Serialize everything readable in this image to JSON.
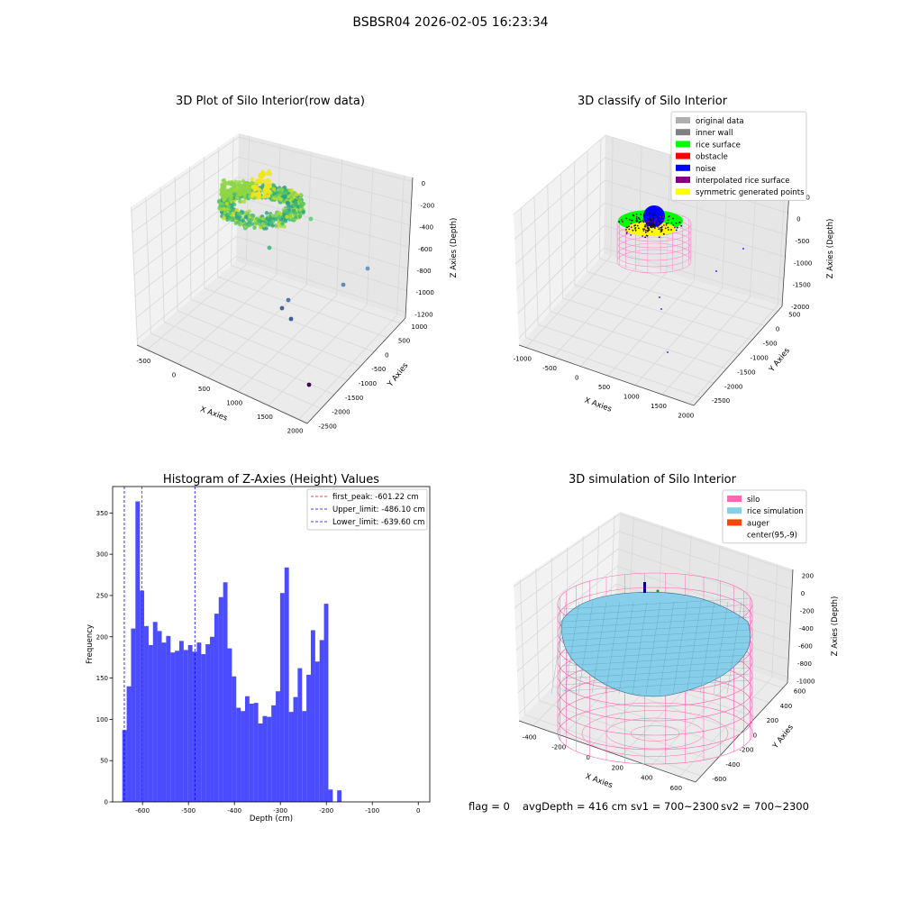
{
  "figure": {
    "title": "BSBSR04 2026-02-05 16:23:34"
  },
  "status": {
    "flag": "flag = 0",
    "avg_depth": "avgDepth = 416 cm",
    "sv1": "sv1 = 700~2300",
    "sv2": "sv2 = 700~2300"
  },
  "chart_data": [
    {
      "type": "scatter3d",
      "title": "3D Plot of Silo Interior(row data)",
      "xlabel": "X Axies",
      "ylabel": "Y Axies",
      "zlabel": "Z Axies (Depth)",
      "x_ticks": [
        "-500",
        "0",
        "500",
        "1000",
        "1500",
        "2000"
      ],
      "y_ticks": [
        "1000",
        "500",
        "0",
        "-500",
        "-1000",
        "-1500",
        "-2000",
        "-2500"
      ],
      "z_ticks": [
        "0",
        "-200",
        "-400",
        "-600",
        "-800",
        "-1000",
        "-1200"
      ],
      "grid": true
    },
    {
      "type": "scatter3d",
      "title": "3D classify of Silo Interior",
      "xlabel": "X Axies",
      "ylabel": "Y Axies",
      "zlabel": "Z Axies (Depth)",
      "x_ticks": [
        "-1000",
        "-500",
        "0",
        "500",
        "1000",
        "1500",
        "2000"
      ],
      "y_ticks": [
        "500",
        "0",
        "-500",
        "-1000",
        "-1500",
        "-2000",
        "-2500"
      ],
      "z_ticks": [
        "500",
        "0",
        "-500",
        "-1000",
        "-1500",
        "-2000"
      ],
      "grid": true,
      "legend_placement": "upper-right",
      "legend": [
        {
          "label": "original data",
          "color": "#b0b0b0"
        },
        {
          "label": "inner wall",
          "color": "#808080"
        },
        {
          "label": "rice surface",
          "color": "#00ff00"
        },
        {
          "label": "obstacle",
          "color": "#ff0000"
        },
        {
          "label": "noise",
          "color": "#0000ff"
        },
        {
          "label": "interpolated rice surface",
          "color": "#800080"
        },
        {
          "label": "symmetric generated points",
          "color": "#ffff00"
        }
      ]
    },
    {
      "type": "bar",
      "title": "Histogram of Z-Axies (Height) Values",
      "xlabel": "Depth (cm)",
      "ylabel": "Frequency",
      "bar_color": "#0000ff",
      "bin_start": -644,
      "bin_width": 9.54,
      "values": [
        87,
        140,
        210,
        364,
        256,
        213,
        190,
        218,
        207,
        193,
        201,
        181,
        183,
        195,
        184,
        190,
        182,
        193,
        179,
        191,
        200,
        228,
        248,
        266,
        186,
        152,
        114,
        110,
        128,
        119,
        120,
        95,
        104,
        103,
        117,
        134,
        253,
        284,
        109,
        127,
        162,
        110,
        154,
        208,
        170,
        196,
        240,
        15,
        0,
        14
      ],
      "x_ticks": [
        -600,
        -500,
        -400,
        -300,
        -200,
        -100,
        0
      ],
      "y_ticks": [
        0,
        50,
        100,
        150,
        200,
        250,
        300,
        350
      ],
      "xlim": [
        -665,
        25
      ],
      "ylim": [
        0,
        382
      ],
      "vlines": [
        {
          "name": "first_peak",
          "value": -601.22,
          "color": "#ff0000",
          "legend": "first_peak: -601.22 cm"
        },
        {
          "name": "upper-limit",
          "value": -486.1,
          "color": "#0000ff",
          "legend": "Upper_limit: -486.10 cm"
        },
        {
          "name": "lower-limit",
          "value": -639.6,
          "color": "#0000ff",
          "legend": "Lower_limit: -639.60 cm"
        }
      ],
      "legend_placement": "upper-right",
      "grid": false
    },
    {
      "type": "surface3d",
      "title": "3D simulation of Silo Interior",
      "xlabel": "X Axies",
      "ylabel": "Y Axies",
      "zlabel": "Z Axies (Depth)",
      "x_ticks": [
        "-400",
        "-200",
        "0",
        "200",
        "400",
        "600"
      ],
      "y_ticks": [
        "600",
        "400",
        "200",
        "0",
        "-200",
        "-400",
        "-600"
      ],
      "z_ticks": [
        "200",
        "0",
        "-200",
        "-400",
        "-600",
        "-800",
        "-1000"
      ],
      "grid": true,
      "legend_placement": "upper-right",
      "legend": [
        {
          "label": "silo",
          "color": "#ff69b4"
        },
        {
          "label": "rice simulation",
          "color": "#87ceeb"
        },
        {
          "label": "auger",
          "color": "#ff4500"
        },
        {
          "label": "center(95,-9)",
          "color": ""
        }
      ]
    }
  ]
}
